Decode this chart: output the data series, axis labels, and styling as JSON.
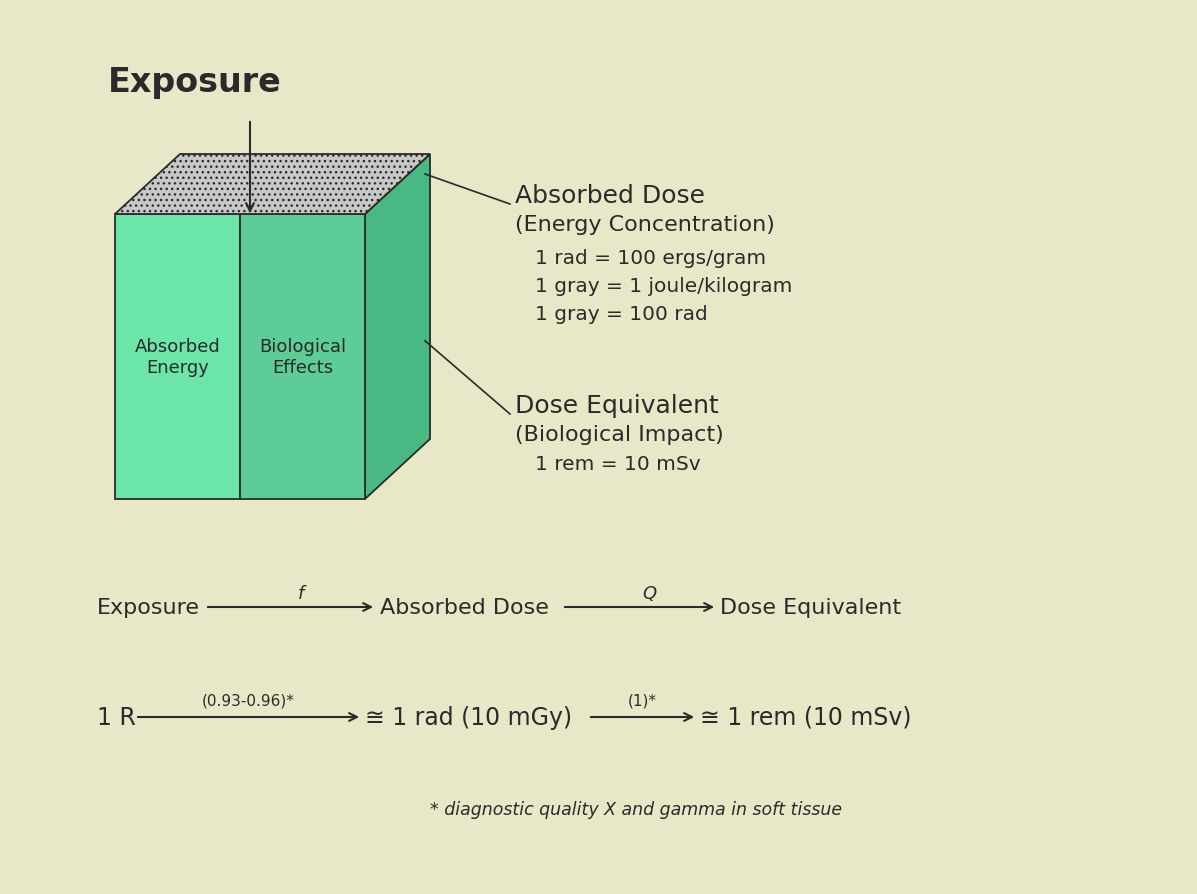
{
  "bg_color": "#e8e8c8",
  "title": "Exposure",
  "cube": {
    "front_left_color": "#6be6a8",
    "front_right_color": "#5dcc96",
    "right_side_color": "#4ab882",
    "top_hatch_color": "#c0c0c0",
    "label_left": "Absorbed\nEnergy",
    "label_right": "Biological\nEffects"
  },
  "annotations": {
    "absorbed_dose_title": "Absorbed Dose",
    "absorbed_dose_sub": "(Energy Concentration)",
    "absorbed_dose_line1": "1 rad = 100 ergs/gram",
    "absorbed_dose_line2": "1 gray = 1 joule/kilogram",
    "absorbed_dose_line3": "1 gray = 100 rad",
    "dose_equiv_title": "Dose Equivalent",
    "dose_equiv_sub": "(Biological Impact)",
    "dose_equiv_line1": "1 rem = 10 mSv"
  },
  "flow_line2_label1": "(0.93-0.96)*",
  "flow_line2_label2": "(1)*",
  "footnote": "* diagnostic quality X and gamma in soft tissue",
  "text_color": "#2a2a2a",
  "dark_color": "#2a2a2a"
}
